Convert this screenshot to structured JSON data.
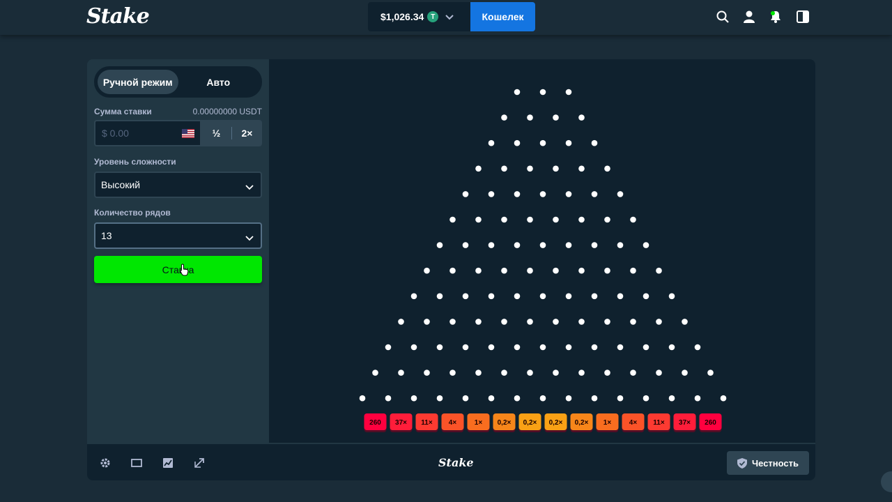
{
  "header": {
    "logo": "Stake",
    "balance": "$1,026.34",
    "currency_icon": "T",
    "wallet_label": "Кошелек",
    "icons": [
      "search-icon",
      "user-icon",
      "bell-icon",
      "sidebar-toggle-icon"
    ]
  },
  "sidebar": {
    "tabs": [
      "Ручной режим",
      "Авто"
    ],
    "active_tab": 0,
    "bet_amount_label": "Сумма ставки",
    "bet_amount_value": "0.00000000 USDT",
    "bet_input_placeholder": "$ 0.00",
    "half_label": "½",
    "double_label": "2×",
    "risk_label": "Уровень сложности",
    "risk_value": "Высокий",
    "rows_label": "Количество рядов",
    "rows_value": "13",
    "bet_button_label": "Ставка"
  },
  "board": {
    "rows": 13,
    "multipliers": [
      "260",
      "37×",
      "11×",
      "4×",
      "1×",
      "0,2×",
      "0,2×",
      "0,2×",
      "0,2×",
      "1×",
      "4×",
      "11×",
      "37×",
      "260"
    ],
    "multiplier_colors": [
      "#ff003f",
      "#ff1d3a",
      "#fd3a31",
      "#fb5328",
      "#f96d1f",
      "#f7861a",
      "#f9a115",
      "#f9a115",
      "#f7861a",
      "#f96d1f",
      "#fb5328",
      "#fd3a31",
      "#ff1d3a",
      "#ff003f"
    ]
  },
  "footer": {
    "logo": "Stake",
    "fairness_label": "Честность",
    "icons": [
      "settings-icon",
      "theater-mode-icon",
      "stats-icon",
      "popout-icon"
    ]
  },
  "colors": {
    "bg": "#1a2c38",
    "panel": "#213743",
    "dark": "#0f212e",
    "accent_green": "#00e701",
    "wallet_blue": "#1475e1"
  }
}
